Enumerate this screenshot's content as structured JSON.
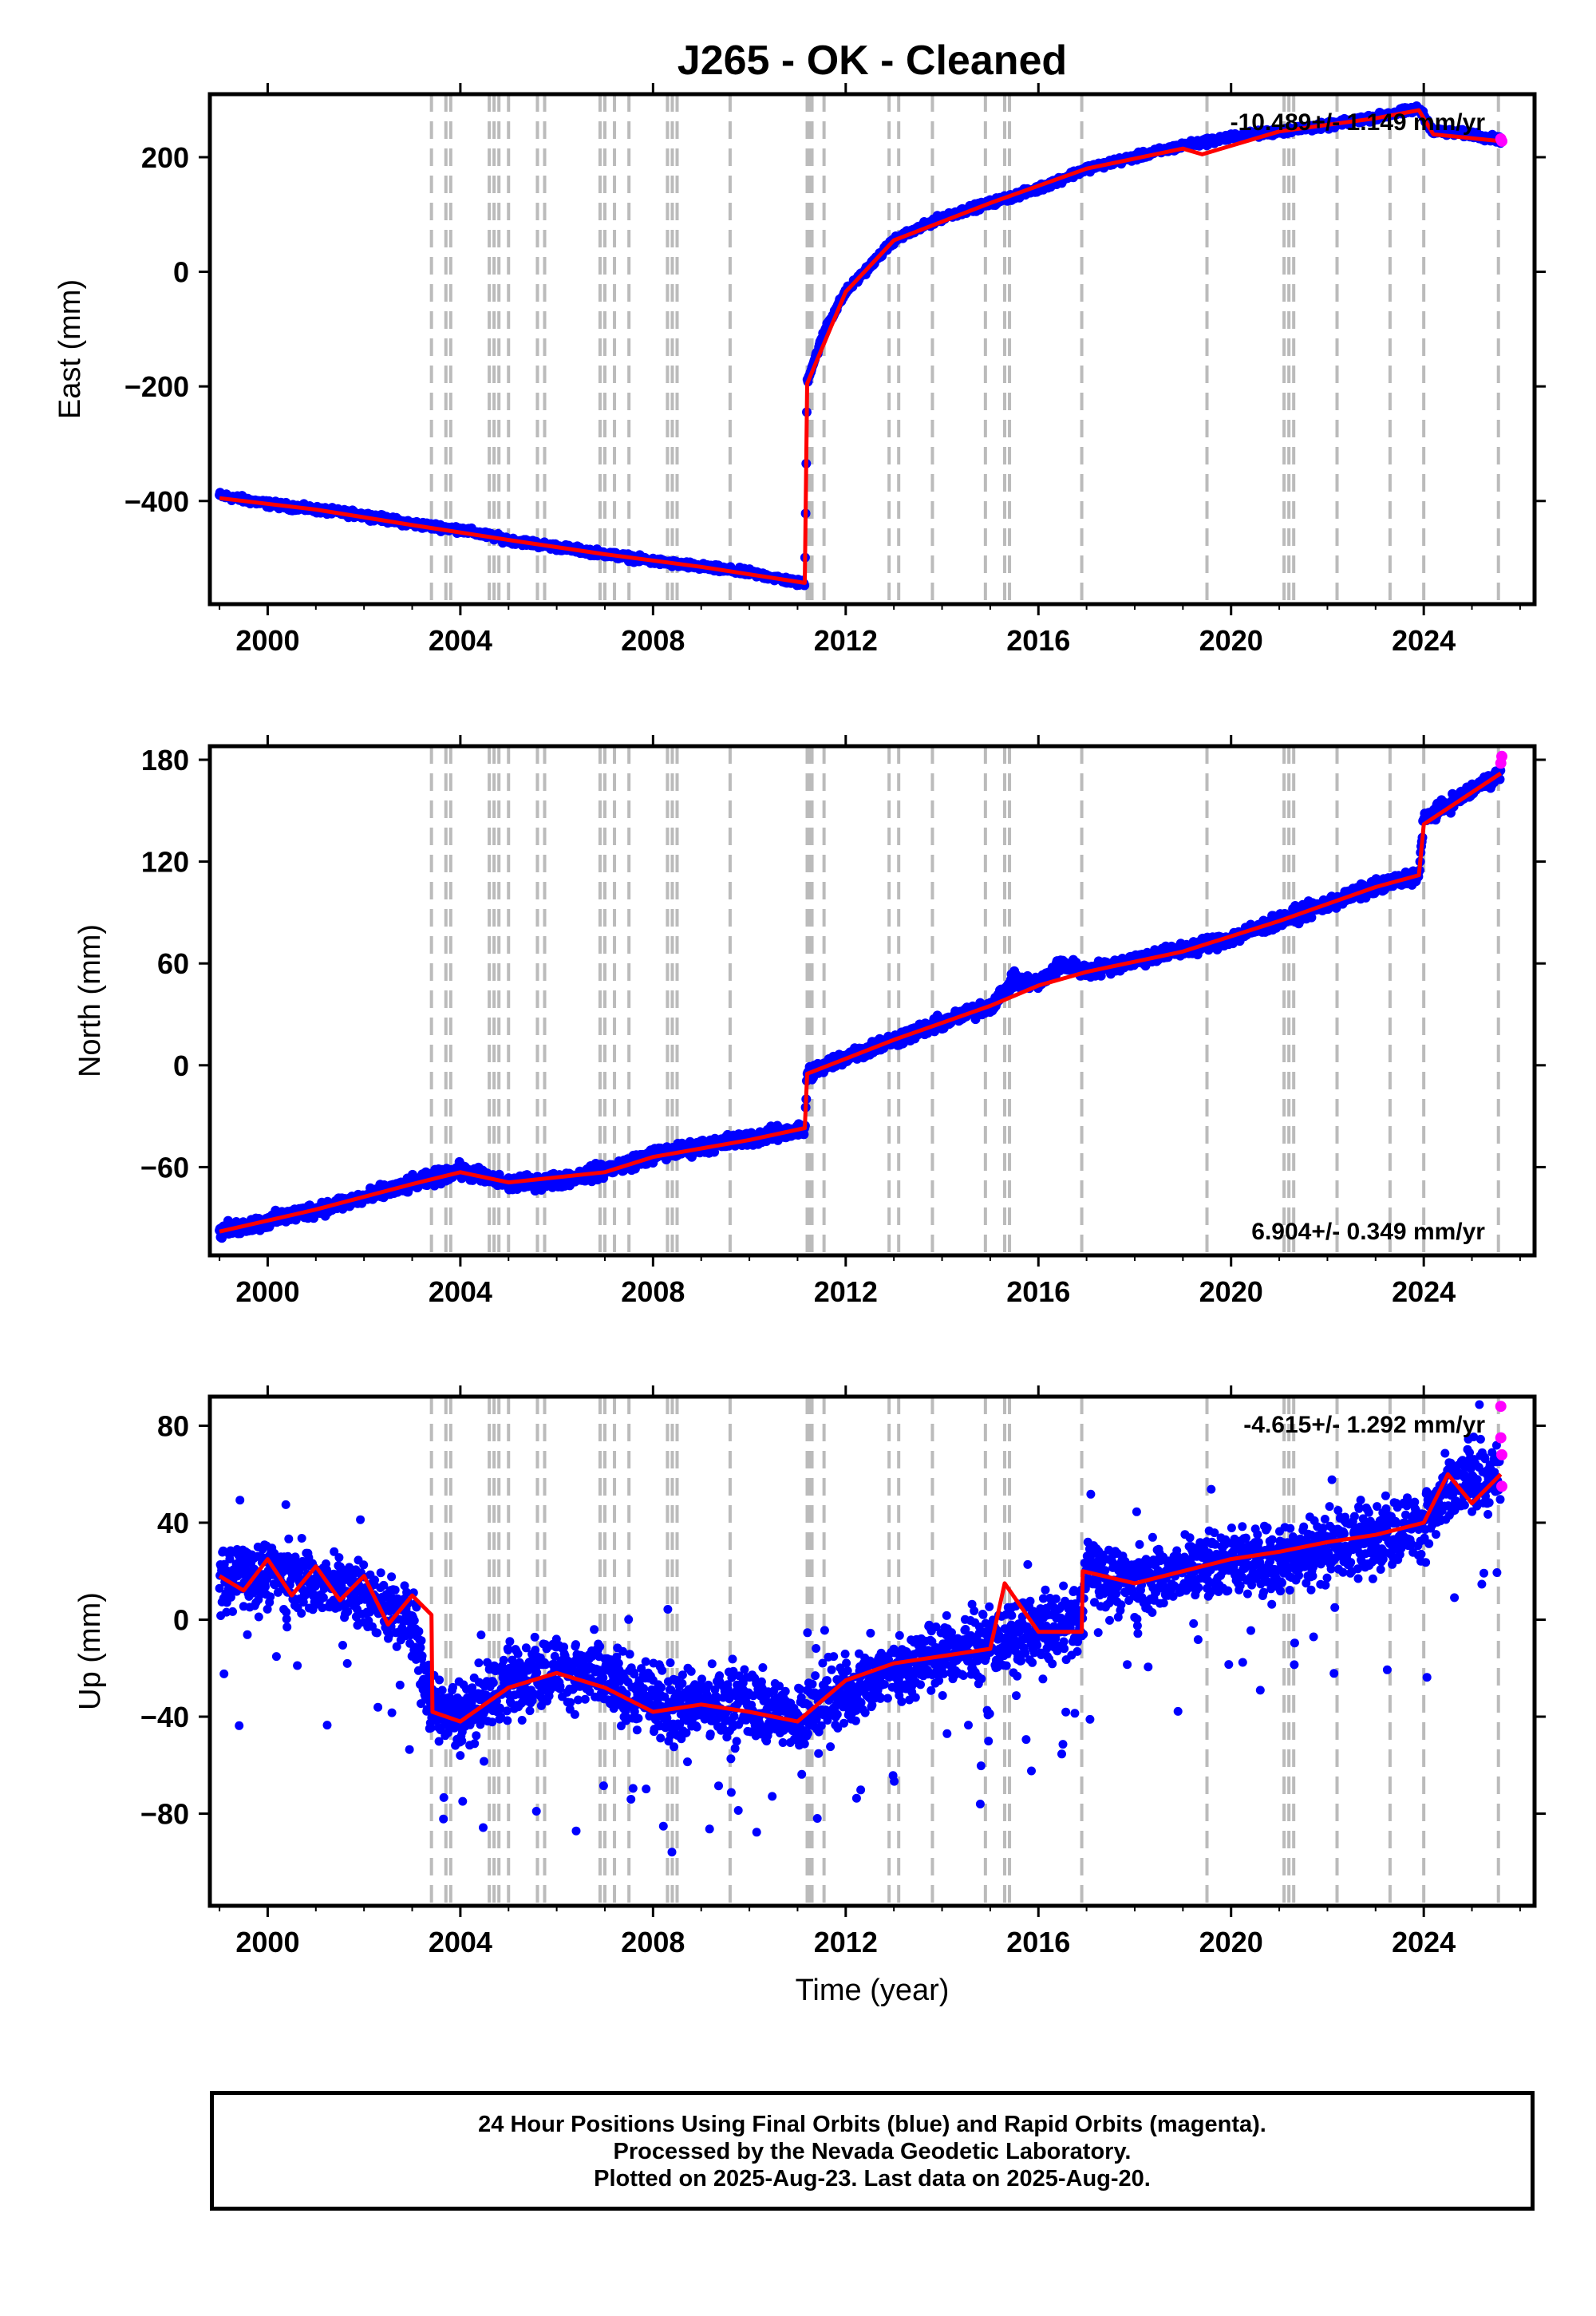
{
  "chart_data": [
    {
      "type": "scatter",
      "title": "J265  - OK - Cleaned",
      "xlabel": "",
      "ylabel": "East (mm)",
      "xlim": [
        1998.8,
        2026.3
      ],
      "ylim": [
        -580,
        310
      ],
      "xticks": [
        "2000",
        "2004",
        "2008",
        "2012",
        "2016",
        "2020",
        "2024"
      ],
      "xtick_values": [
        2000,
        2004,
        2008,
        2012,
        2016,
        2020,
        2024
      ],
      "yticks": [
        "200",
        "0",
        "−200",
        "−400"
      ],
      "ytick_values": [
        200,
        0,
        -200,
        -400
      ],
      "annotation": "-10.489+/- 1.149 mm/yr",
      "annotation_position": "top-right",
      "series": [
        {
          "color": "#0000ff",
          "marker": "dot",
          "desc_points": [
            [
              1999.0,
              -390
            ],
            [
              2000.0,
              -405
            ],
            [
              2001.0,
              -415
            ],
            [
              2002.0,
              -425
            ],
            [
              2003.0,
              -440
            ],
            [
              2004.0,
              -450
            ],
            [
              2005.0,
              -468
            ],
            [
              2006.0,
              -480
            ],
            [
              2007.0,
              -492
            ],
            [
              2008.0,
              -505
            ],
            [
              2009.0,
              -515
            ],
            [
              2010.0,
              -525
            ],
            [
              2011.15,
              -545
            ],
            [
              2011.2,
              -190
            ],
            [
              2011.6,
              -95
            ],
            [
              2012.0,
              -35
            ],
            [
              2012.5,
              10
            ],
            [
              2013.0,
              55
            ],
            [
              2014.0,
              95
            ],
            [
              2015.0,
              120
            ],
            [
              2016.0,
              145
            ],
            [
              2017.0,
              180
            ],
            [
              2018.0,
              200
            ],
            [
              2019.0,
              220
            ],
            [
              2020.0,
              235
            ],
            [
              2021.0,
              245
            ],
            [
              2022.0,
              255
            ],
            [
              2023.0,
              270
            ],
            [
              2023.9,
              285
            ],
            [
              2024.2,
              245
            ],
            [
              2025.0,
              240
            ],
            [
              2025.6,
              230
            ]
          ]
        },
        {
          "color": "#ff0000",
          "line": true,
          "desc_points": [
            [
              1999.0,
              -395
            ],
            [
              2001.0,
              -415
            ],
            [
              2003.0,
              -442
            ],
            [
              2005.0,
              -468
            ],
            [
              2007.0,
              -493
            ],
            [
              2009.0,
              -515
            ],
            [
              2011.15,
              -543
            ],
            [
              2011.2,
              -195
            ],
            [
              2012.0,
              -35
            ],
            [
              2013.0,
              55
            ],
            [
              2015.0,
              120
            ],
            [
              2017.0,
              180
            ],
            [
              2019.0,
              215
            ],
            [
              2019.4,
              205
            ],
            [
              2021.0,
              245
            ],
            [
              2023.0,
              268
            ],
            [
              2023.9,
              282
            ],
            [
              2024.2,
              240
            ],
            [
              2025.6,
              228
            ]
          ]
        }
      ],
      "magenta_points": [
        [
          2025.6,
          232
        ],
        [
          2025.62,
          228
        ]
      ],
      "vlines": [
        2003.4,
        2003.7,
        2003.8,
        2004.6,
        2004.7,
        2004.8,
        2005.0,
        2005.6,
        2005.75,
        2006.9,
        2007.0,
        2007.2,
        2007.5,
        2008.3,
        2008.4,
        2008.5,
        2009.6,
        2011.2,
        2011.25,
        2011.3,
        2011.55,
        2012.9,
        2013.1,
        2013.8,
        2014.9,
        2015.3,
        2015.4,
        2016.9,
        2019.5,
        2021.1,
        2021.2,
        2021.3,
        2022.2,
        2023.3,
        2024.0,
        2025.55
      ]
    },
    {
      "type": "scatter",
      "title": "",
      "xlabel": "",
      "ylabel": "North (mm)",
      "xlim": [
        1998.8,
        2026.3
      ],
      "ylim": [
        -112,
        188
      ],
      "xticks": [
        "2000",
        "2004",
        "2008",
        "2012",
        "2016",
        "2020",
        "2024"
      ],
      "xtick_values": [
        2000,
        2004,
        2008,
        2012,
        2016,
        2020,
        2024
      ],
      "yticks": [
        "180",
        "120",
        "60",
        "0",
        "−60"
      ],
      "ytick_values": [
        180,
        120,
        60,
        0,
        -60
      ],
      "annotation": "6.904+/- 0.349 mm/yr",
      "annotation_position": "bottom-right",
      "series": [
        {
          "color": "#0000ff",
          "marker": "dot",
          "desc_points": [
            [
              1999.0,
              -98
            ],
            [
              2000.0,
              -92
            ],
            [
              2001.0,
              -85
            ],
            [
              2002.0,
              -78
            ],
            [
              2003.0,
              -70
            ],
            [
              2004.0,
              -62
            ],
            [
              2005.0,
              -70
            ],
            [
              2006.0,
              -68
            ],
            [
              2007.0,
              -62
            ],
            [
              2008.0,
              -53
            ],
            [
              2009.0,
              -48
            ],
            [
              2010.0,
              -43
            ],
            [
              2011.15,
              -38
            ],
            [
              2011.2,
              -5
            ],
            [
              2012.0,
              5
            ],
            [
              2013.0,
              15
            ],
            [
              2014.0,
              25
            ],
            [
              2015.0,
              35
            ],
            [
              2015.5,
              50
            ],
            [
              2016.0,
              48
            ],
            [
              2016.5,
              60
            ],
            [
              2017.0,
              55
            ],
            [
              2018.0,
              62
            ],
            [
              2019.0,
              68
            ],
            [
              2020.0,
              75
            ],
            [
              2021.0,
              85
            ],
            [
              2022.0,
              95
            ],
            [
              2023.0,
              105
            ],
            [
              2023.9,
              112
            ],
            [
              2024.0,
              145
            ],
            [
              2025.0,
              162
            ],
            [
              2025.6,
              172
            ]
          ]
        },
        {
          "color": "#ff0000",
          "line": true,
          "desc_points": [
            [
              1999.0,
              -98
            ],
            [
              2001.0,
              -85
            ],
            [
              2003.0,
              -70
            ],
            [
              2004.0,
              -63
            ],
            [
              2005.0,
              -69
            ],
            [
              2007.0,
              -63
            ],
            [
              2008.0,
              -54
            ],
            [
              2010.0,
              -44
            ],
            [
              2011.15,
              -37
            ],
            [
              2011.2,
              -5
            ],
            [
              2013.0,
              15
            ],
            [
              2015.0,
              35
            ],
            [
              2016.0,
              47
            ],
            [
              2017.0,
              55
            ],
            [
              2019.0,
              67
            ],
            [
              2021.0,
              85
            ],
            [
              2023.0,
              105
            ],
            [
              2023.9,
              112
            ],
            [
              2024.0,
              142
            ],
            [
              2025.6,
              172
            ]
          ]
        }
      ],
      "magenta_points": [
        [
          2025.6,
          178
        ],
        [
          2025.62,
          182
        ]
      ],
      "vlines": [
        2003.4,
        2003.7,
        2003.8,
        2004.6,
        2004.7,
        2004.8,
        2005.0,
        2005.6,
        2005.75,
        2006.9,
        2007.0,
        2007.2,
        2007.5,
        2008.3,
        2008.4,
        2008.5,
        2009.6,
        2011.2,
        2011.25,
        2011.3,
        2011.55,
        2012.9,
        2013.1,
        2013.8,
        2014.9,
        2015.3,
        2015.4,
        2016.9,
        2019.5,
        2021.1,
        2021.2,
        2021.3,
        2022.2,
        2023.3,
        2024.0,
        2025.55
      ]
    },
    {
      "type": "scatter",
      "title": "",
      "xlabel": "Time (year)",
      "ylabel": "Up (mm)",
      "xlim": [
        1998.8,
        2026.3
      ],
      "ylim": [
        -118,
        92
      ],
      "xticks": [
        "2000",
        "2004",
        "2008",
        "2012",
        "2016",
        "2020",
        "2024"
      ],
      "xtick_values": [
        2000,
        2004,
        2008,
        2012,
        2016,
        2020,
        2024
      ],
      "yticks": [
        "80",
        "40",
        "0",
        "−40",
        "−80"
      ],
      "ytick_values": [
        80,
        40,
        0,
        -40,
        -80
      ],
      "annotation": "-4.615+/- 1.292 mm/yr",
      "annotation_position": "top-right",
      "series": [
        {
          "color": "#0000ff",
          "marker": "dot",
          "desc_points": [
            [
              1999.0,
              15
            ],
            [
              2000.0,
              20
            ],
            [
              2001.0,
              15
            ],
            [
              2002.0,
              10
            ],
            [
              2003.0,
              0
            ],
            [
              2003.4,
              -35
            ],
            [
              2004.0,
              -40
            ],
            [
              2005.0,
              -25
            ],
            [
              2006.0,
              -20
            ],
            [
              2007.0,
              -25
            ],
            [
              2008.0,
              -35
            ],
            [
              2009.0,
              -35
            ],
            [
              2010.0,
              -35
            ],
            [
              2011.0,
              -40
            ],
            [
              2012.0,
              -30
            ],
            [
              2013.0,
              -20
            ],
            [
              2014.0,
              -15
            ],
            [
              2015.0,
              -10
            ],
            [
              2016.0,
              -5
            ],
            [
              2016.9,
              0
            ],
            [
              2017.0,
              20
            ],
            [
              2018.0,
              15
            ],
            [
              2019.0,
              20
            ],
            [
              2020.0,
              25
            ],
            [
              2021.0,
              25
            ],
            [
              2022.0,
              30
            ],
            [
              2023.0,
              35
            ],
            [
              2024.0,
              40
            ],
            [
              2025.0,
              60
            ],
            [
              2025.6,
              55
            ]
          ]
        },
        {
          "color": "#ff0000",
          "line": true,
          "desc_points": [
            [
              1999.0,
              18
            ],
            [
              1999.5,
              12
            ],
            [
              2000.0,
              25
            ],
            [
              2000.5,
              10
            ],
            [
              2001.0,
              22
            ],
            [
              2001.5,
              8
            ],
            [
              2002.0,
              18
            ],
            [
              2002.5,
              -2
            ],
            [
              2003.0,
              10
            ],
            [
              2003.4,
              2
            ],
            [
              2003.42,
              -38
            ],
            [
              2004.0,
              -42
            ],
            [
              2005.0,
              -28
            ],
            [
              2006.0,
              -22
            ],
            [
              2007.0,
              -28
            ],
            [
              2008.0,
              -38
            ],
            [
              2009.0,
              -35
            ],
            [
              2010.0,
              -38
            ],
            [
              2011.0,
              -42
            ],
            [
              2012.0,
              -25
            ],
            [
              2013.0,
              -18
            ],
            [
              2014.0,
              -15
            ],
            [
              2015.0,
              -12
            ],
            [
              2015.3,
              15
            ],
            [
              2016.0,
              -5
            ],
            [
              2016.9,
              -5
            ],
            [
              2016.92,
              20
            ],
            [
              2018.0,
              15
            ],
            [
              2019.0,
              20
            ],
            [
              2020.0,
              25
            ],
            [
              2021.0,
              28
            ],
            [
              2022.0,
              32
            ],
            [
              2023.0,
              35
            ],
            [
              2024.0,
              40
            ],
            [
              2024.5,
              60
            ],
            [
              2025.0,
              48
            ],
            [
              2025.6,
              60
            ]
          ]
        }
      ],
      "magenta_points": [
        [
          2025.6,
          88
        ],
        [
          2025.6,
          75
        ],
        [
          2025.62,
          68
        ],
        [
          2025.62,
          55
        ]
      ],
      "vlines": [
        2003.4,
        2003.7,
        2003.8,
        2004.6,
        2004.7,
        2004.8,
        2005.0,
        2005.6,
        2005.75,
        2006.9,
        2007.0,
        2007.2,
        2007.5,
        2008.3,
        2008.4,
        2008.5,
        2009.6,
        2011.2,
        2011.25,
        2011.3,
        2011.55,
        2012.9,
        2013.1,
        2013.8,
        2014.9,
        2015.3,
        2015.4,
        2016.9,
        2019.5,
        2021.1,
        2021.2,
        2021.3,
        2022.2,
        2023.3,
        2024.0,
        2025.55
      ]
    }
  ],
  "footer": {
    "line1": "24 Hour Positions Using Final Orbits (blue) and Rapid Orbits (magenta).",
    "line2": "Processed by the Nevada Geodetic Laboratory.",
    "line3": "Plotted on 2025-Aug-23. Last data on 2025-Aug-20."
  },
  "colors": {
    "final_orbits": "#0000ff",
    "rapid_orbits": "#ff00ff",
    "model": "#ff0000",
    "equipment_lines": "#bbbbbb"
  }
}
